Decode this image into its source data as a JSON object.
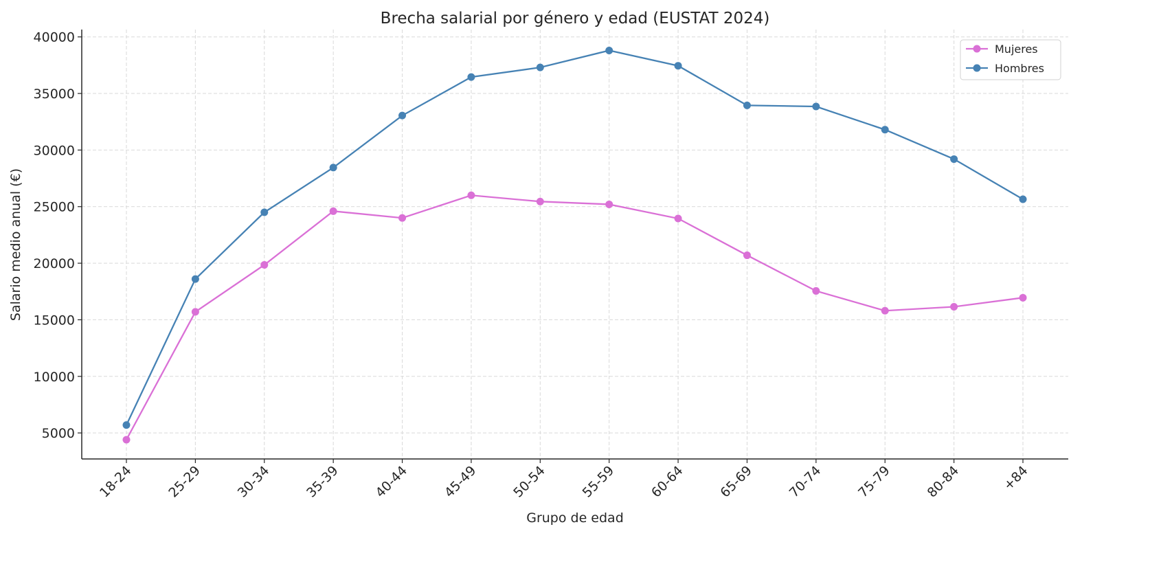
{
  "chart_data": {
    "type": "line",
    "title": "Brecha salarial por género y edad (EUSTAT 2024)",
    "xlabel": "Grupo de edad",
    "ylabel": "Salario medio anual (€)",
    "categories": [
      "18-24",
      "25-29",
      "30-34",
      "35-39",
      "40-44",
      "45-49",
      "50-54",
      "55-59",
      "60-64",
      "65-69",
      "70-74",
      "75-79",
      "80-84",
      "+84"
    ],
    "ylim": [
      2700,
      40650
    ],
    "yticks": [
      5000,
      10000,
      15000,
      20000,
      25000,
      30000,
      35000,
      40000
    ],
    "grid": true,
    "legend_position": "top-right",
    "series": [
      {
        "name": "Mujeres",
        "color": "#DA70D6",
        "marker": "circle",
        "values": [
          4400,
          15700,
          19850,
          24600,
          24000,
          26000,
          25450,
          25200,
          23950,
          20700,
          17550,
          15800,
          16150,
          16950
        ]
      },
      {
        "name": "Hombres",
        "color": "#4682B4",
        "marker": "circle",
        "values": [
          5700,
          18600,
          24500,
          28450,
          33050,
          36450,
          37300,
          38800,
          37450,
          33950,
          33850,
          31800,
          29200,
          25650
        ]
      }
    ]
  }
}
